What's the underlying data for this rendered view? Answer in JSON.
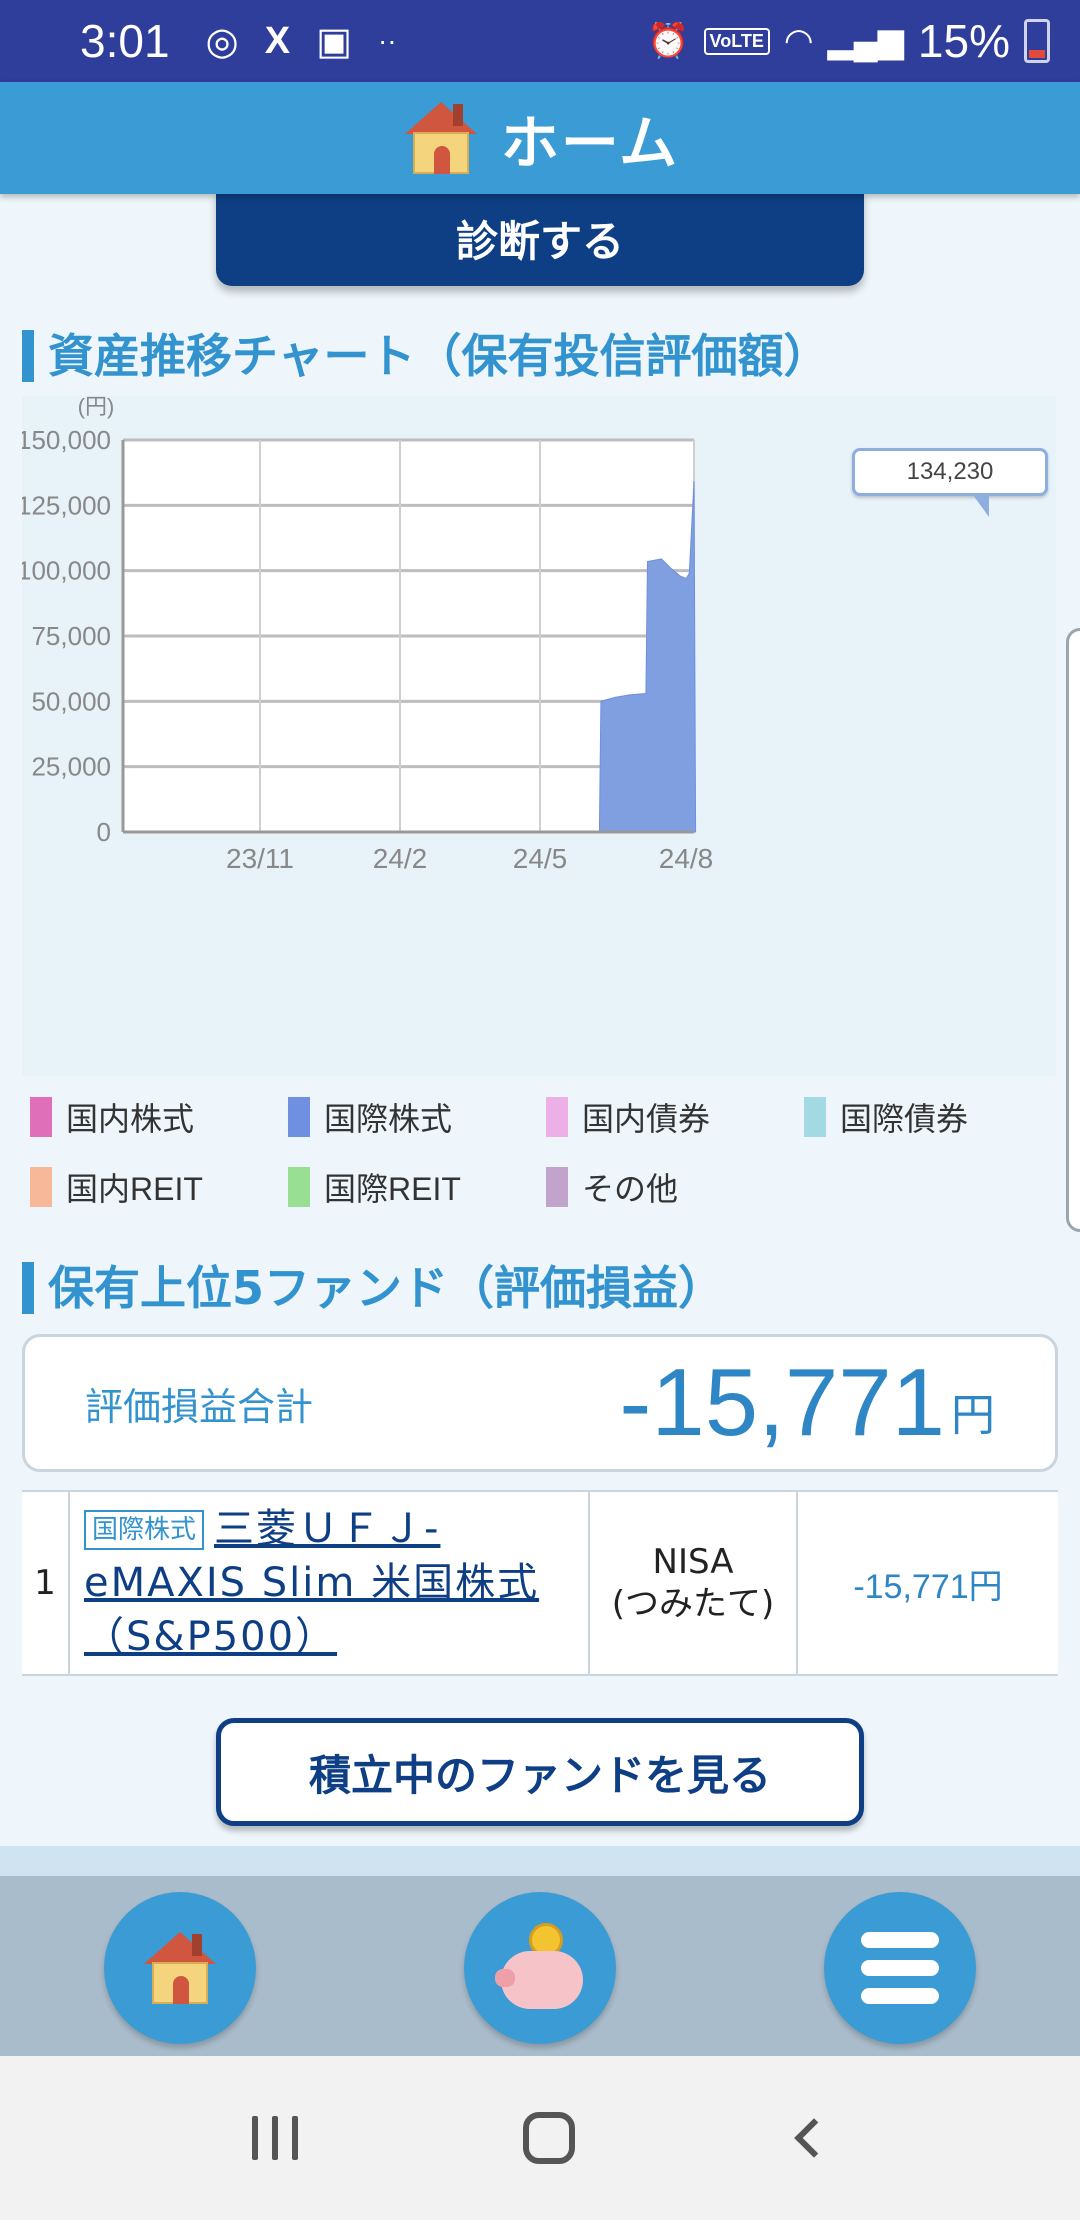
{
  "status_bar": {
    "time": "3:01",
    "left_icons": [
      "sync-icon",
      "x-icon",
      "gallery-icon",
      "more-dots-icon"
    ],
    "battery_pct": "15%",
    "volte": "VoLTE"
  },
  "header": {
    "title": "ホーム"
  },
  "diagnose_button": "診断する",
  "asset_section_title": "資産推移チャート（保有投信評価額）",
  "chart_data": {
    "type": "area",
    "unit_label": "(円)",
    "y_ticks": [
      "150,000",
      "125,000",
      "100,000",
      "75,000",
      "50,000",
      "25,000",
      "0"
    ],
    "x_ticks": [
      "23/11",
      "24/2",
      "24/5",
      "24/8"
    ],
    "ylim": [
      0,
      150000
    ],
    "grid": true,
    "series": [
      {
        "name": "国際株式",
        "color": "#7f9fe0",
        "points": [
          [
            "2024-06-10",
            0
          ],
          [
            "2024-06-11",
            50000
          ],
          [
            "2024-06-20",
            51500
          ],
          [
            "2024-06-30",
            52500
          ],
          [
            "2024-07-10",
            53000
          ],
          [
            "2024-07-11",
            103500
          ],
          [
            "2024-07-20",
            104500
          ],
          [
            "2024-07-26",
            101000
          ],
          [
            "2024-08-01",
            98000
          ],
          [
            "2024-08-05",
            97000
          ],
          [
            "2024-08-07",
            99000
          ],
          [
            "2024-08-10",
            134230
          ],
          [
            "2024-08-11",
            0
          ]
        ]
      }
    ],
    "callout": "134,230"
  },
  "legend": [
    {
      "label": "国内株式",
      "color": "#de6fb8"
    },
    {
      "label": "国際株式",
      "color": "#6f8fe0"
    },
    {
      "label": "国内債券",
      "color": "#ecb0e6"
    },
    {
      "label": "国際債券",
      "color": "#a3d9e2"
    },
    {
      "label": "国内REIT",
      "color": "#f7b89a"
    },
    {
      "label": "国際REIT",
      "color": "#98df94"
    },
    {
      "label": "その他",
      "color": "#c2a3cb"
    }
  ],
  "top_funds_title": "保有上位5ファンド（評価損益）",
  "summary": {
    "label": "評価損益合計",
    "amount": "-15,771",
    "unit": "円"
  },
  "funds": [
    {
      "rank": "1",
      "category": "国際株式",
      "name": "三菱ＵＦＪ-eMAXIS Slim 米国株式（S&P500）",
      "account_line1": "NISA",
      "account_line2": "(つみたて)",
      "pl": "-15,771円"
    }
  ],
  "see_funds_button": "積立中のファンドを見る",
  "bottom_nav": [
    "house-icon",
    "piggy-bank-icon",
    "menu-icon"
  ]
}
